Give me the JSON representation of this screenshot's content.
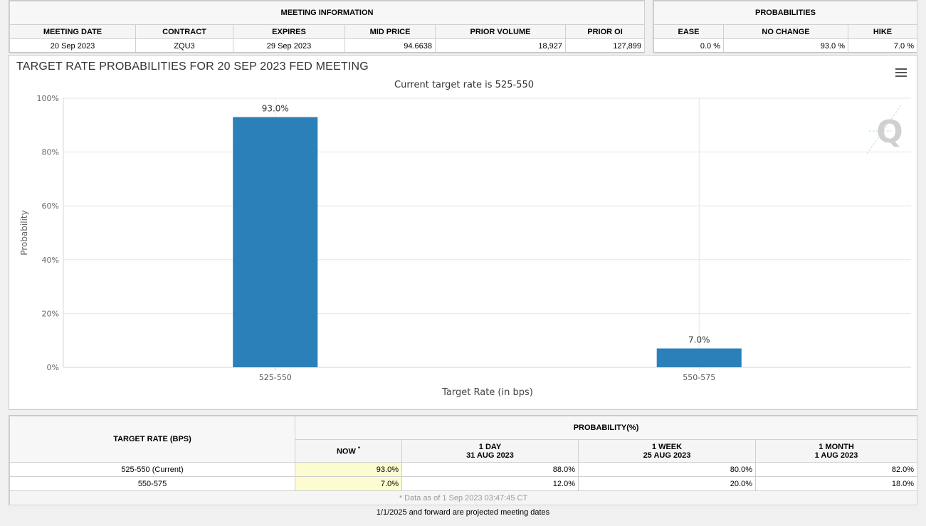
{
  "meeting_info": {
    "header": "MEETING INFORMATION",
    "columns": [
      "MEETING DATE",
      "CONTRACT",
      "EXPIRES",
      "MID PRICE",
      "PRIOR VOLUME",
      "PRIOR OI"
    ],
    "row": [
      "20 Sep 2023",
      "ZQU3",
      "29 Sep 2023",
      "94.6638",
      "18,927",
      "127,899"
    ]
  },
  "probabilities": {
    "header": "PROBABILITIES",
    "columns": [
      "EASE",
      "NO CHANGE",
      "HIKE"
    ],
    "row": [
      "0.0 %",
      "93.0 %",
      "7.0 %"
    ]
  },
  "chart_title": "TARGET RATE PROBABILITIES FOR 20 SEP 2023 FED MEETING",
  "chart_data": {
    "type": "bar",
    "title": "TARGET RATE PROBABILITIES FOR 20 SEP 2023 FED MEETING",
    "subtitle": "Current target rate is 525-550",
    "categories": [
      "525-550",
      "550-575"
    ],
    "values": [
      93.0,
      7.0
    ],
    "data_labels": [
      "93.0%",
      "7.0%"
    ],
    "xlabel": "Target Rate (in bps)",
    "ylabel": "Probability",
    "ylim": [
      0,
      100
    ],
    "yticks": [
      0,
      20,
      40,
      60,
      80,
      100
    ],
    "ytick_labels": [
      "0%",
      "20%",
      "40%",
      "60%",
      "80%",
      "100%"
    ],
    "grid": true,
    "bar_color": "#2b80b9"
  },
  "watermark": "Q",
  "rate_table": {
    "target_header": "TARGET RATE (BPS)",
    "prob_header": "PROBABILITY(%)",
    "now_label": "NOW",
    "now_mark": "*",
    "periods": [
      {
        "label": "1 DAY",
        "date": "31 AUG 2023"
      },
      {
        "label": "1 WEEK",
        "date": "25 AUG 2023"
      },
      {
        "label": "1 MONTH",
        "date": "1 AUG 2023"
      }
    ],
    "rows": [
      {
        "rate": "525-550 (Current)",
        "now": "93.0%",
        "day": "88.0%",
        "week": "80.0%",
        "month": "82.0%"
      },
      {
        "rate": "550-575",
        "now": "7.0%",
        "day": "12.0%",
        "week": "20.0%",
        "month": "18.0%"
      }
    ],
    "data_note": "* Data as of 1 Sep 2023 03:47:45 CT"
  },
  "footer_note": "1/1/2025 and forward are projected meeting dates"
}
